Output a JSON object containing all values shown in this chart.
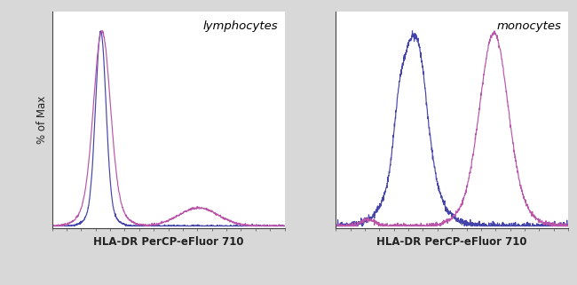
{
  "left_label": "lymphocytes",
  "right_label": "monocytes",
  "xlabel": "HLA-DR PerCP-eFluor 710",
  "ylabel": "% of Max",
  "blue_color": "#4444aa",
  "pink_color": "#bb55aa",
  "bg_color": "#d8d8d8",
  "plot_bg": "#ffffff",
  "left_blue": {
    "peaks": [
      {
        "mu": 0.21,
        "sigma": 0.022,
        "amp": 1.0
      },
      {
        "mu": 0.21,
        "sigma": 0.045,
        "amp": 0.12
      }
    ],
    "noise_seed": 1,
    "noise_scale": 0.003
  },
  "left_pink": {
    "peaks": [
      {
        "mu": 0.215,
        "sigma": 0.035,
        "amp": 1.0
      },
      {
        "mu": 0.215,
        "sigma": 0.065,
        "amp": 0.18
      },
      {
        "mu": 0.63,
        "sigma": 0.085,
        "amp": 0.11
      }
    ],
    "noise_seed": 2,
    "noise_scale": 0.003
  },
  "right_blue": {
    "peaks": [
      {
        "mu": 0.33,
        "sigma": 0.055,
        "amp": 1.0
      },
      {
        "mu": 0.33,
        "sigma": 0.1,
        "amp": 0.25
      },
      {
        "mu": 0.27,
        "sigma": 0.02,
        "amp": 0.15
      },
      {
        "mu": 0.37,
        "sigma": 0.02,
        "amp": 0.1
      }
    ],
    "noise_seed": 3,
    "noise_scale": 0.012
  },
  "right_pink": {
    "peaks": [
      {
        "mu": 0.68,
        "sigma": 0.058,
        "amp": 1.0
      },
      {
        "mu": 0.68,
        "sigma": 0.1,
        "amp": 0.22
      },
      {
        "mu": 0.14,
        "sigma": 0.03,
        "amp": 0.04
      }
    ],
    "noise_seed": 4,
    "noise_scale": 0.007
  },
  "figsize": [
    6.5,
    3.21
  ],
  "dpi": 100
}
